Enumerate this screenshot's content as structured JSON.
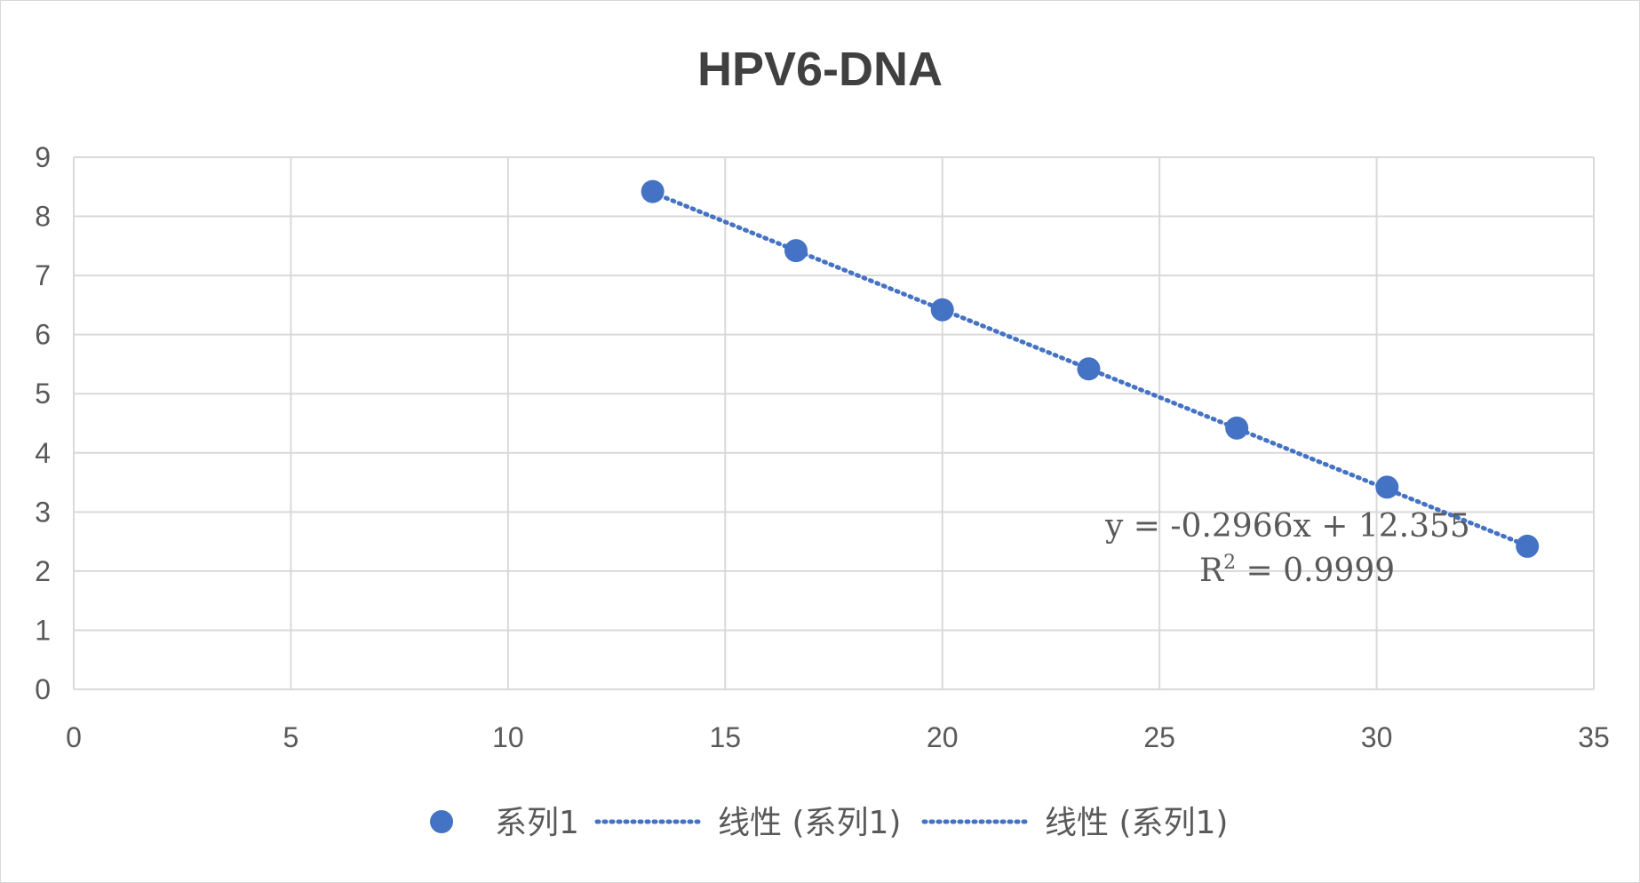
{
  "chart_data": {
    "type": "scatter",
    "title": "HPV6-DNA",
    "xlabel": "",
    "ylabel": "",
    "xlim": [
      0,
      35
    ],
    "ylim": [
      0,
      9
    ],
    "xticks": [
      "0",
      "5",
      "10",
      "15",
      "20",
      "25",
      "30",
      "35"
    ],
    "yticks": [
      "0",
      "1",
      "2",
      "3",
      "4",
      "5",
      "6",
      "7",
      "8",
      "9"
    ],
    "grid": true,
    "legend_position": "bottom",
    "series": [
      {
        "name": "系列1",
        "x": [
          13.33,
          16.63,
          20.0,
          23.37,
          26.78,
          30.24,
          33.47
        ],
        "y": [
          8.42,
          7.42,
          6.42,
          5.42,
          4.42,
          3.42,
          2.42
        ],
        "color": "#4472C4"
      }
    ],
    "trendline": {
      "series_name": "线性 (系列1)",
      "type": "linear",
      "slope": -0.2966,
      "intercept": 12.355,
      "color": "#4472C4",
      "style": "dotted",
      "equation_label": "y = -0.2966x + 12.355",
      "r2_prefix": "R",
      "r2_superscript": "2",
      "r2_value_label": " = 0.9999"
    },
    "legend": [
      {
        "label": "系列1",
        "kind": "marker"
      },
      {
        "label": "线性 (系列1)",
        "kind": "dotted-line"
      },
      {
        "label": "线性 (系列1)",
        "kind": "dotted-line"
      }
    ]
  }
}
